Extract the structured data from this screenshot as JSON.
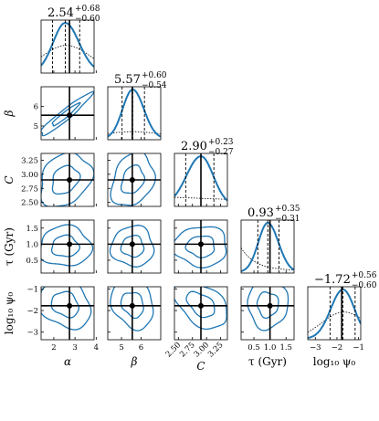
{
  "chart_data": {
    "type": "corner",
    "parameters": [
      {
        "key": "alpha",
        "label": "α",
        "median": 2.54,
        "err_plus": 0.68,
        "err_minus": 0.6,
        "title": "2.54",
        "title_sup": "+0.68",
        "title_sub": "−0.60",
        "true": 2.74,
        "range": [
          1.4,
          3.9
        ],
        "ticks": [
          2,
          3,
          4
        ],
        "tick_labels": [
          "2",
          "3",
          "4"
        ]
      },
      {
        "key": "beta",
        "label": "β",
        "median": 5.57,
        "err_plus": 0.6,
        "err_minus": 0.54,
        "title": "5.57",
        "title_sup": "+0.60",
        "title_sub": "−0.54",
        "true": 5.55,
        "range": [
          4.3,
          7.0
        ],
        "ticks": [
          5,
          6
        ],
        "tick_labels": [
          "5",
          "6"
        ]
      },
      {
        "key": "C",
        "label": "C",
        "median": 2.9,
        "err_plus": 0.23,
        "err_minus": 0.27,
        "title": "2.90",
        "title_sup": "+0.23",
        "title_sub": "−0.27",
        "true": 2.9,
        "range": [
          2.43,
          3.37
        ],
        "ticks": [
          2.5,
          2.75,
          3.0,
          3.25
        ],
        "tick_labels": [
          "2.50",
          "2.75",
          "3.00",
          "3.25"
        ]
      },
      {
        "key": "tau",
        "label": "τ (Gyr)",
        "median": 0.93,
        "err_plus": 0.35,
        "err_minus": 0.31,
        "title": "0.93",
        "title_sup": "+0.35",
        "title_sub": "−0.31",
        "true": 1.0,
        "range": [
          0.1,
          1.75
        ],
        "ticks": [
          0.5,
          1.0,
          1.5
        ],
        "tick_labels": [
          "0.5",
          "1.0",
          "1.5"
        ]
      },
      {
        "key": "log10_psi0",
        "label": "log₁₀ ψ₀",
        "median": -1.72,
        "err_plus": 0.56,
        "err_minus": 0.6,
        "title": "−1.72",
        "title_sup": "+0.56",
        "title_sub": "−0.60",
        "true": -1.78,
        "range": [
          -3.35,
          -0.9
        ],
        "ticks": [
          -3,
          -2,
          -1
        ],
        "tick_labels": [
          "−3",
          "−2",
          "−1"
        ]
      }
    ],
    "colors": {
      "posterior": "#1f77b4",
      "prior": "#000000",
      "truth": "#000000"
    },
    "line_styles": {
      "quantiles": "dashed",
      "prior": "dotted",
      "truth": "solid"
    }
  }
}
